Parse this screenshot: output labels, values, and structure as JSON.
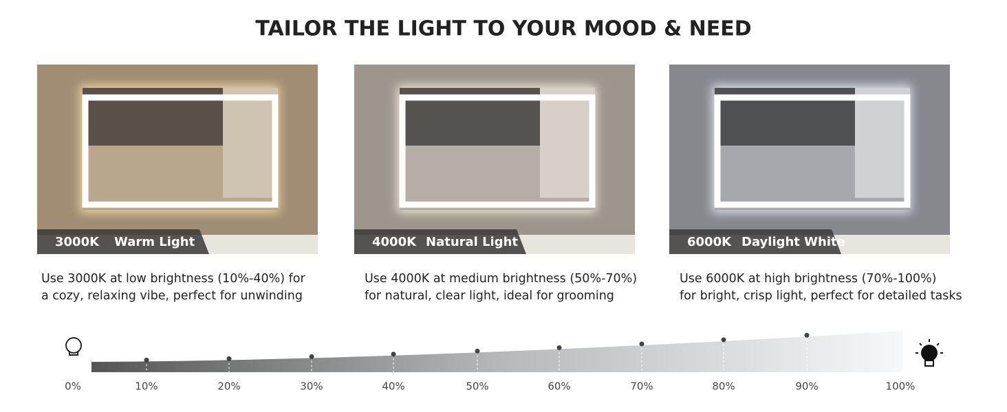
{
  "title": "TAILOR THE LIGHT TO YOUR MOOD & NEED",
  "panels": [
    {
      "kelvin": "3000K",
      "name": "Warm Light",
      "description": [
        "Use 3000K at low brightness (10%-40%) for",
        "a cozy, relaxing vibe, perfect for unwinding"
      ]
    },
    {
      "kelvin": "4000K",
      "name": "Natural Light",
      "description": [
        "Use 4000K at medium brightness (50%-70%)",
        "for natural, clear light, ideal for grooming"
      ]
    },
    {
      "kelvin": "6000K",
      "name": "Daylight White",
      "description": [
        "Use 6000K at high brightness (70%-100%)",
        "for bright, crisp light, perfect for detailed tasks"
      ]
    }
  ],
  "scale": {
    "labels": [
      "0%",
      "10%",
      "20%",
      "30%",
      "40%",
      "50%",
      "60%",
      "70%",
      "80%",
      "90%",
      "100%"
    ]
  }
}
